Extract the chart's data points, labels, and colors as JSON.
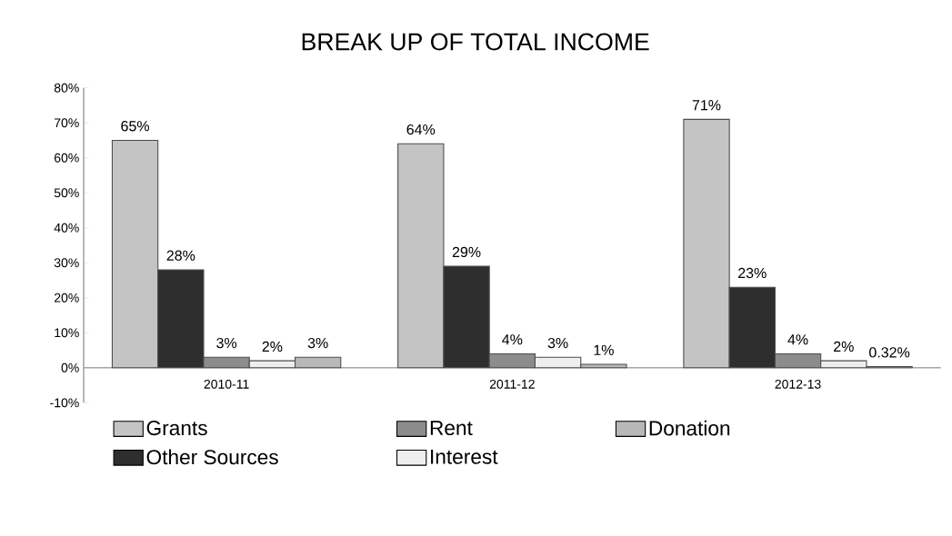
{
  "chart_data": {
    "type": "bar",
    "title": "BREAK UP OF TOTAL INCOME",
    "categories": [
      "2010-11",
      "2011-12",
      "2012-13"
    ],
    "series": [
      {
        "name": "Grants",
        "color": "#c4c4c4",
        "values": [
          65,
          64,
          71
        ],
        "value_labels": [
          "65%",
          "64%",
          "71%"
        ]
      },
      {
        "name": "Other Sources",
        "color": "#2e2e2e",
        "values": [
          28,
          29,
          23
        ],
        "value_labels": [
          "28%",
          "29%",
          "23%"
        ]
      },
      {
        "name": "Rent",
        "color": "#8c8c8c",
        "values": [
          3,
          4,
          4
        ],
        "value_labels": [
          "3%",
          "4%",
          "4%"
        ]
      },
      {
        "name": "Interest",
        "color": "#eeeeee",
        "values": [
          2,
          3,
          2
        ],
        "value_labels": [
          "2%",
          "3%",
          "2%"
        ]
      },
      {
        "name": "Donation",
        "color": "#b8b8b8",
        "values": [
          3,
          1,
          0.32
        ],
        "value_labels": [
          "3%",
          "1%",
          "0.32%"
        ]
      }
    ],
    "ylim": [
      -10,
      80
    ],
    "yticks": [
      {
        "value": -10,
        "label": "-10%"
      },
      {
        "value": 0,
        "label": "0%"
      },
      {
        "value": 10,
        "label": "10%"
      },
      {
        "value": 20,
        "label": "20%"
      },
      {
        "value": 30,
        "label": "30%"
      },
      {
        "value": 40,
        "label": "40%"
      },
      {
        "value": 50,
        "label": "50%"
      },
      {
        "value": 60,
        "label": "60%"
      },
      {
        "value": 70,
        "label": "70%"
      },
      {
        "value": 80,
        "label": "80%"
      }
    ],
    "grid": false,
    "legend": "bottom"
  }
}
